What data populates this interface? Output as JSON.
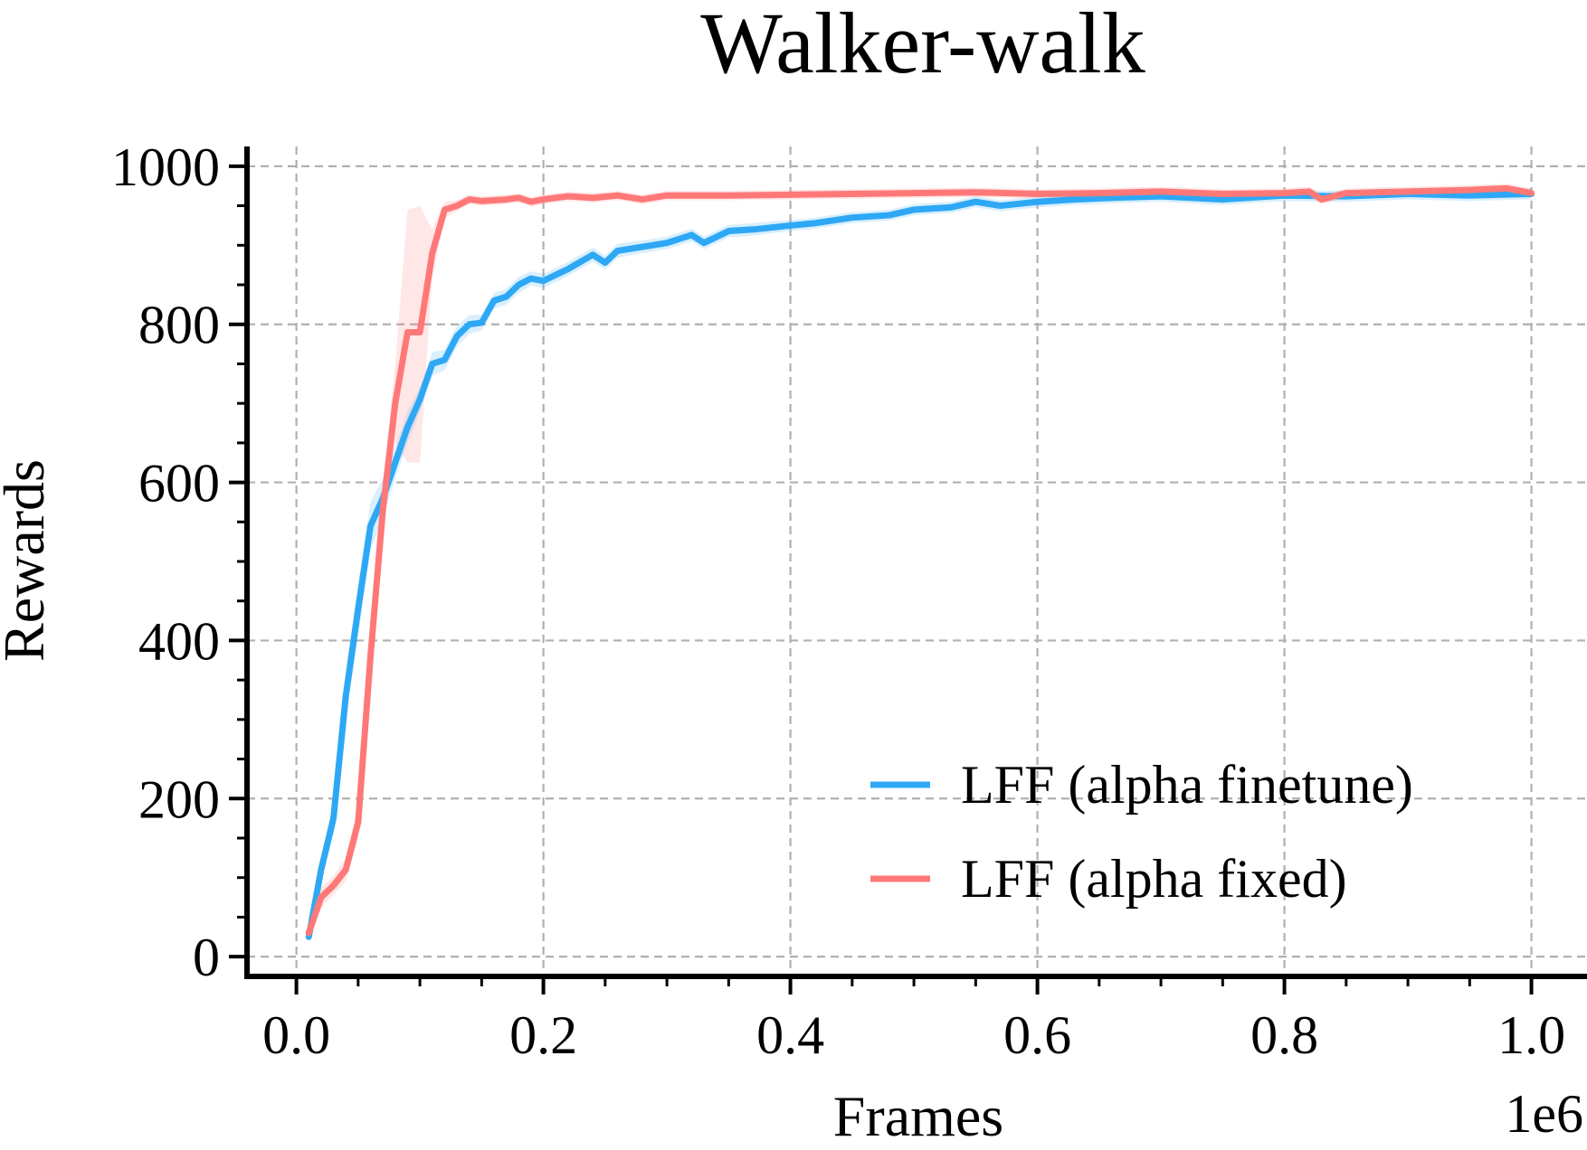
{
  "chart_data": {
    "type": "line",
    "title": "Walker-walk",
    "xlabel": "Frames",
    "ylabel": "Rewards",
    "x_offset_label": "1e6",
    "xlim": [
      -0.04,
      1.045
    ],
    "ylim": [
      -25,
      1025
    ],
    "xticks": [
      0.0,
      0.2,
      0.4,
      0.6,
      0.8,
      1.0
    ],
    "xtick_labels": [
      "0.0",
      "0.2",
      "0.4",
      "0.6",
      "0.8",
      "1.0"
    ],
    "yticks": [
      0,
      200,
      400,
      600,
      800,
      1000
    ],
    "ytick_labels": [
      "0",
      "200",
      "400",
      "600",
      "800",
      "1000"
    ],
    "grid": true,
    "legend_position": "lower-right",
    "series": [
      {
        "name": "LFF (alpha finetune)",
        "color": "#2ea8f5",
        "x": [
          0.01,
          0.02,
          0.03,
          0.04,
          0.05,
          0.06,
          0.07,
          0.08,
          0.09,
          0.1,
          0.11,
          0.12,
          0.13,
          0.14,
          0.15,
          0.16,
          0.17,
          0.18,
          0.19,
          0.2,
          0.22,
          0.24,
          0.25,
          0.26,
          0.28,
          0.3,
          0.32,
          0.33,
          0.35,
          0.37,
          0.4,
          0.42,
          0.45,
          0.48,
          0.5,
          0.53,
          0.55,
          0.57,
          0.6,
          0.63,
          0.66,
          0.7,
          0.75,
          0.8,
          0.85,
          0.9,
          0.95,
          1.0
        ],
        "y": [
          25,
          110,
          175,
          330,
          440,
          545,
          580,
          625,
          670,
          705,
          750,
          755,
          785,
          800,
          802,
          830,
          835,
          850,
          858,
          855,
          870,
          888,
          878,
          893,
          898,
          903,
          913,
          903,
          918,
          920,
          925,
          928,
          935,
          938,
          945,
          948,
          955,
          950,
          955,
          958,
          960,
          962,
          958,
          963,
          962,
          965,
          963,
          965
        ],
        "band_low": [
          18,
          95,
          155,
          300,
          405,
          515,
          555,
          605,
          650,
          690,
          735,
          742,
          772,
          788,
          792,
          820,
          825,
          840,
          849,
          846,
          861,
          879,
          869,
          884,
          890,
          895,
          905,
          895,
          910,
          912,
          918,
          921,
          928,
          931,
          938,
          941,
          948,
          943,
          948,
          951,
          953,
          955,
          951,
          956,
          955,
          958,
          956,
          958
        ],
        "band_high": [
          32,
          125,
          195,
          360,
          470,
          575,
          605,
          645,
          690,
          720,
          765,
          768,
          798,
          812,
          812,
          840,
          845,
          860,
          867,
          864,
          879,
          897,
          887,
          902,
          906,
          911,
          921,
          911,
          926,
          928,
          932,
          935,
          942,
          945,
          952,
          955,
          962,
          957,
          962,
          965,
          967,
          969,
          965,
          970,
          969,
          972,
          970,
          972
        ]
      },
      {
        "name": "LFF (alpha fixed)",
        "color": "#ff7878",
        "x": [
          0.01,
          0.02,
          0.03,
          0.04,
          0.05,
          0.06,
          0.07,
          0.08,
          0.09,
          0.1,
          0.11,
          0.12,
          0.13,
          0.14,
          0.15,
          0.16,
          0.17,
          0.18,
          0.19,
          0.2,
          0.22,
          0.24,
          0.26,
          0.28,
          0.3,
          0.35,
          0.4,
          0.45,
          0.5,
          0.55,
          0.6,
          0.65,
          0.7,
          0.75,
          0.8,
          0.82,
          0.83,
          0.85,
          0.9,
          0.95,
          0.98,
          1.0
        ],
        "y": [
          30,
          75,
          90,
          110,
          170,
          380,
          565,
          700,
          790,
          790,
          890,
          945,
          950,
          958,
          956,
          957,
          958,
          960,
          955,
          958,
          962,
          960,
          963,
          958,
          963,
          963,
          964,
          965,
          966,
          967,
          965,
          966,
          968,
          965,
          966,
          968,
          958,
          966,
          968,
          970,
          972,
          966
        ],
        "band_low": [
          24,
          62,
          78,
          95,
          150,
          350,
          535,
          650,
          625,
          625,
          860,
          935,
          943,
          952,
          950,
          951,
          952,
          954,
          949,
          952,
          956,
          954,
          957,
          952,
          957,
          957,
          958,
          959,
          960,
          961,
          959,
          960,
          962,
          959,
          960,
          962,
          952,
          960,
          962,
          964,
          966,
          960
        ],
        "band_high": [
          36,
          88,
          102,
          125,
          190,
          410,
          595,
          750,
          945,
          950,
          920,
          955,
          957,
          964,
          962,
          963,
          964,
          966,
          961,
          964,
          968,
          966,
          969,
          964,
          969,
          969,
          970,
          971,
          972,
          973,
          971,
          972,
          974,
          971,
          972,
          974,
          964,
          972,
          974,
          976,
          978,
          972
        ]
      }
    ]
  }
}
